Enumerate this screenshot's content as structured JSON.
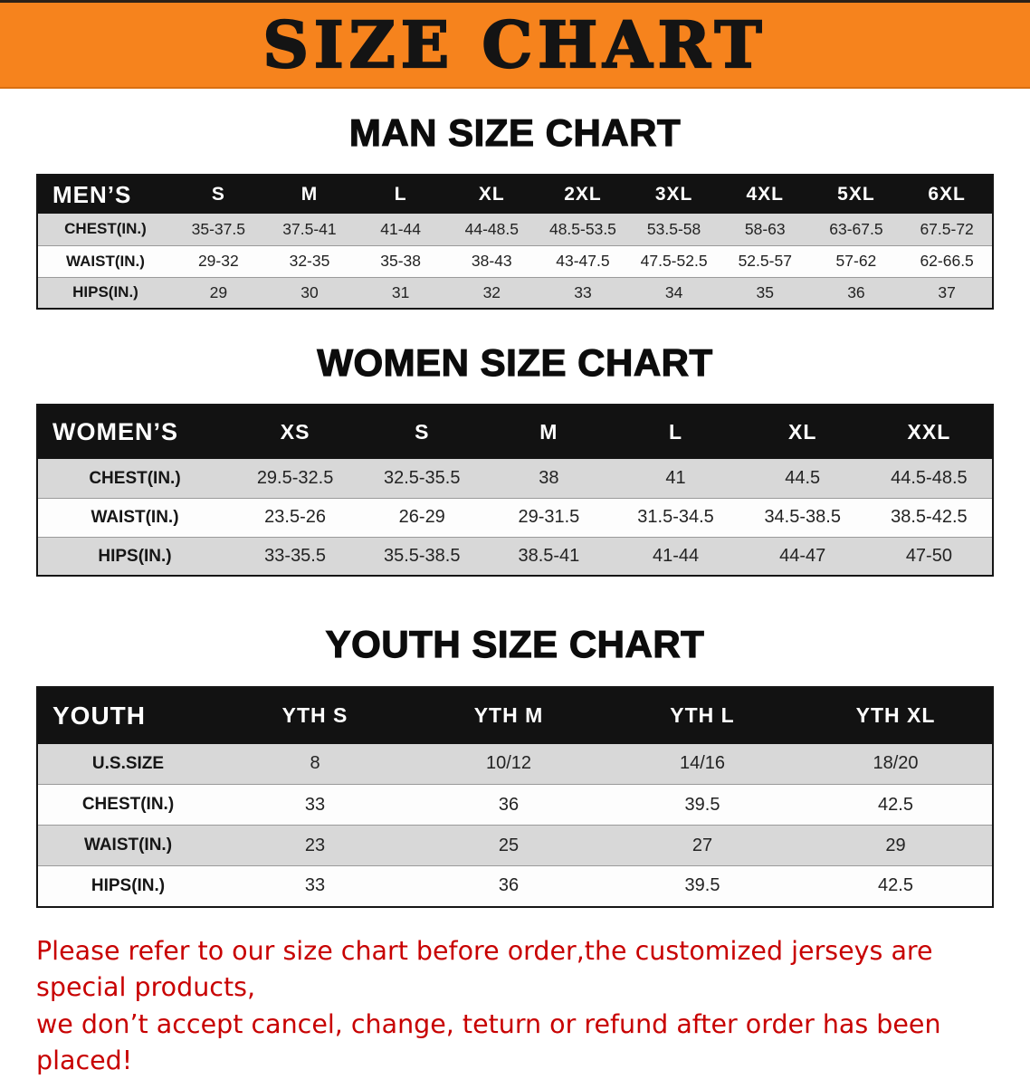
{
  "banner": {
    "title": "SIZE CHART",
    "background_color": "#F6831D",
    "text_color": "#141414"
  },
  "table_style": {
    "header_background": "#121212",
    "header_text_color": "#FFFFFF",
    "stripe_color": "#D8D8D8",
    "row_color": "#FDFDFD"
  },
  "chart_data": [
    {
      "type": "table",
      "title": "MAN SIZE CHART",
      "header": [
        "MEN’S",
        "S",
        "M",
        "L",
        "XL",
        "2XL",
        "3XL",
        "4XL",
        "5XL",
        "6XL"
      ],
      "rows": [
        [
          "CHEST(IN.)",
          "35-37.5",
          "37.5-41",
          "41-44",
          "44-48.5",
          "48.5-53.5",
          "53.5-58",
          "58-63",
          "63-67.5",
          "67.5-72"
        ],
        [
          "WAIST(IN.)",
          "29-32",
          "32-35",
          "35-38",
          "38-43",
          "43-47.5",
          "47.5-52.5",
          "52.5-57",
          "57-62",
          "62-66.5"
        ],
        [
          "HIPS(IN.)",
          "29",
          "30",
          "31",
          "32",
          "33",
          "34",
          "35",
          "36",
          "37"
        ]
      ]
    },
    {
      "type": "table",
      "title": "WOMEN SIZE CHART",
      "header": [
        "WOMEN’S",
        "XS",
        "S",
        "M",
        "L",
        "XL",
        "XXL"
      ],
      "rows": [
        [
          "CHEST(IN.)",
          "29.5-32.5",
          "32.5-35.5",
          "38",
          "41",
          "44.5",
          "44.5-48.5"
        ],
        [
          "WAIST(IN.)",
          "23.5-26",
          "26-29",
          "29-31.5",
          "31.5-34.5",
          "34.5-38.5",
          "38.5-42.5"
        ],
        [
          "HIPS(IN.)",
          "33-35.5",
          "35.5-38.5",
          "38.5-41",
          "41-44",
          "44-47",
          "47-50"
        ]
      ]
    },
    {
      "type": "table",
      "title": "YOUTH SIZE CHART",
      "header": [
        "YOUTH",
        "YTH S",
        "YTH M",
        "YTH L",
        "YTH XL"
      ],
      "rows": [
        [
          "U.S.SIZE",
          "8",
          "10/12",
          "14/16",
          "18/20"
        ],
        [
          "CHEST(IN.)",
          "33",
          "36",
          "39.5",
          "42.5"
        ],
        [
          "WAIST(IN.)",
          "23",
          "25",
          "27",
          "29"
        ],
        [
          "HIPS(IN.)",
          "33",
          "36",
          "39.5",
          "42.5"
        ]
      ]
    }
  ],
  "disclaimer": {
    "line1": "Please refer to our size chart before order,the customized jerseys are special products,",
    "line2": "we don’t accept cancel, change, teturn or refund after order has been placed!",
    "color": "#C80000"
  }
}
